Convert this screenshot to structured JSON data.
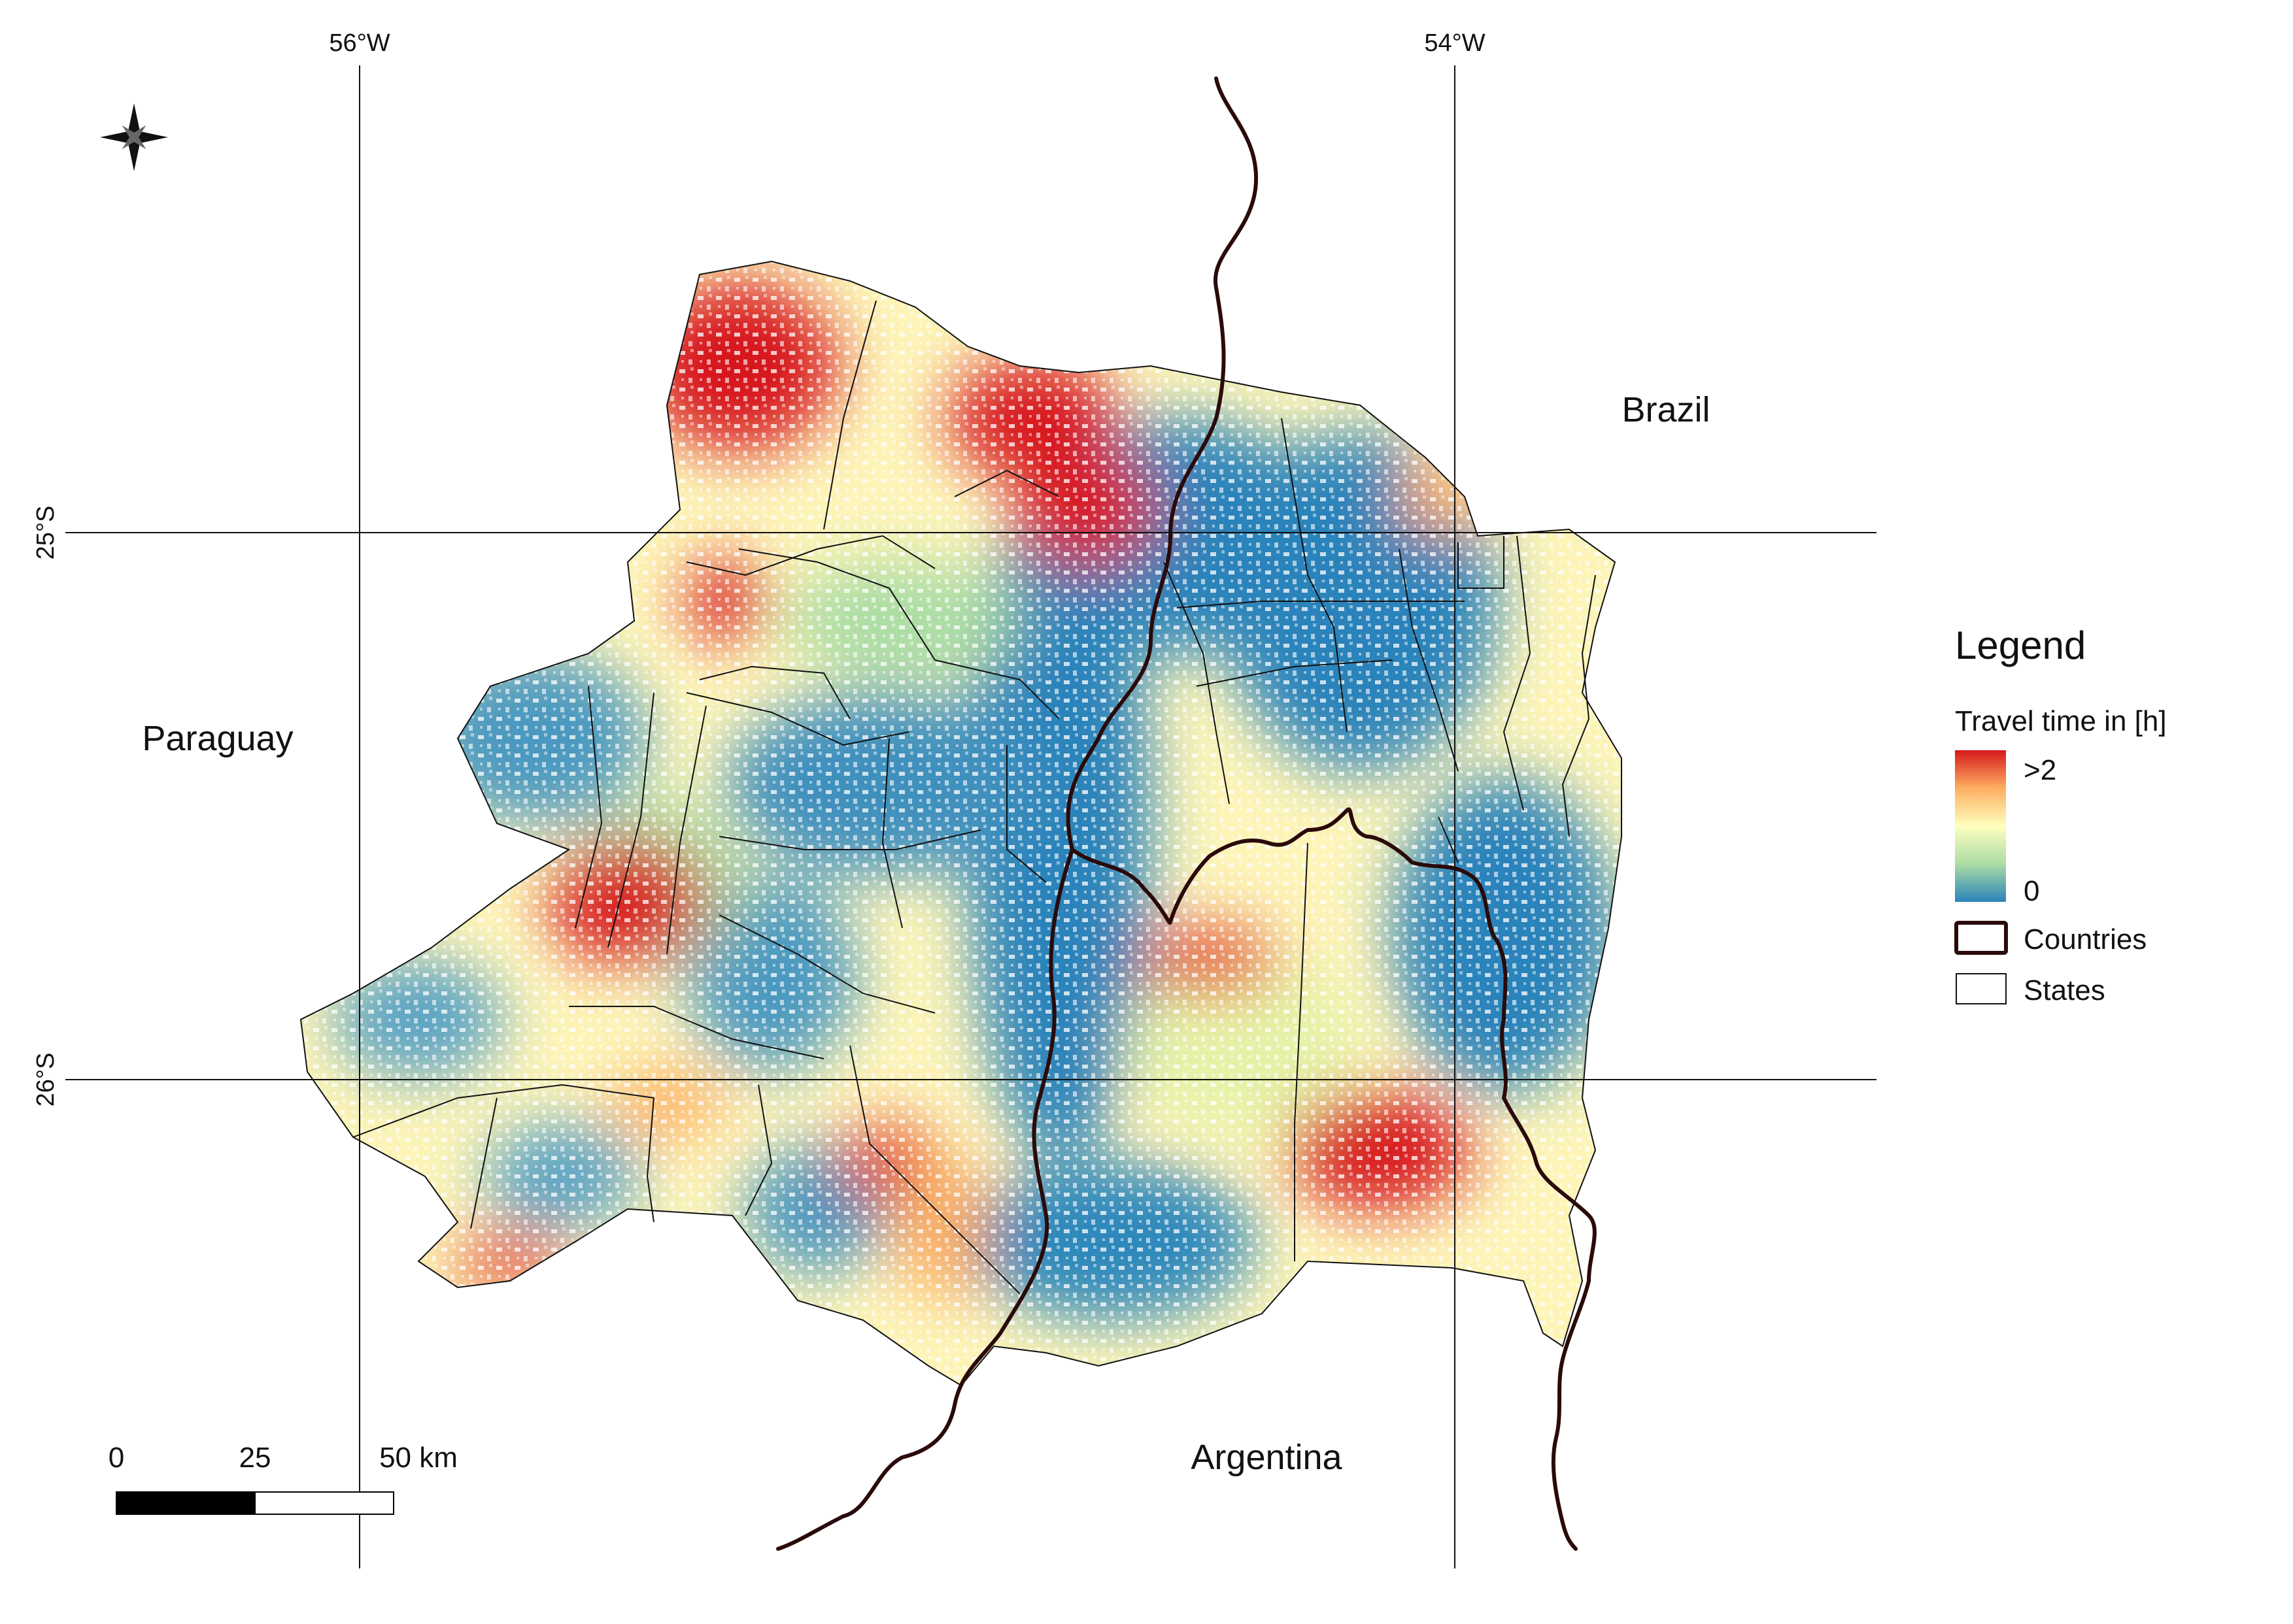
{
  "map": {
    "graticule": {
      "longitudes": [
        "56°W",
        "54°W"
      ],
      "latitudes": [
        "25°S",
        "26°S"
      ]
    },
    "countries": {
      "paraguay": "Paraguay",
      "brazil": "Brazil",
      "argentina": "Argentina"
    },
    "scale_bar": {
      "labels": [
        "0",
        "25",
        "50 km"
      ]
    },
    "north_arrow_icon": "compass-star-icon"
  },
  "legend": {
    "title": "Legend",
    "subtitle": "Travel time in [h]",
    "ramp_high_label": ">2",
    "ramp_low_label": "0",
    "ramp_colors": [
      "#d7191c",
      "#fdae61",
      "#ffffbf",
      "#abdda4",
      "#2b83ba"
    ],
    "countries_label": "Countries",
    "states_label": "States",
    "country_border_color": "#2a0a0a",
    "state_border_color": "#111111"
  }
}
